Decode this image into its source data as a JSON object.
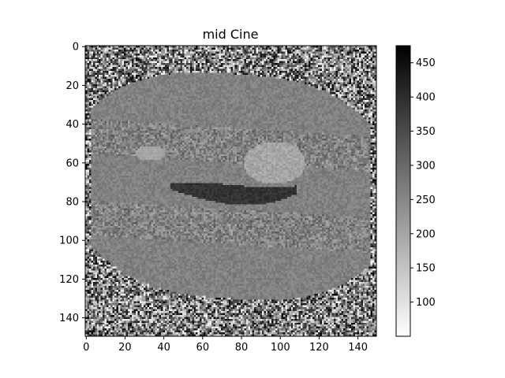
{
  "chart_data": {
    "type": "heatmap",
    "title": "mid Cine",
    "xlabel": "",
    "ylabel": "",
    "image_size": [
      150,
      150
    ],
    "xlim": [
      0,
      150
    ],
    "ylim": [
      150,
      0
    ],
    "x_ticks": [
      0,
      20,
      40,
      60,
      80,
      100,
      120,
      140
    ],
    "y_ticks": [
      0,
      20,
      40,
      60,
      80,
      100,
      120,
      140
    ],
    "colormap": "gray_r",
    "colorbar": {
      "range": [
        50,
        475
      ],
      "ticks": [
        100,
        150,
        200,
        250,
        300,
        350,
        400,
        450
      ]
    },
    "regions": [
      {
        "name": "noisy background",
        "value_range": [
          60,
          470
        ]
      },
      {
        "name": "tissue slab",
        "value_mean": 260,
        "rows": [
          10,
          132
        ]
      },
      {
        "name": "dark elongated structure",
        "value_mean": 390,
        "x_range": [
          44,
          108
        ],
        "y_range": [
          70,
          88
        ]
      },
      {
        "name": "light patches",
        "value_mean": 200,
        "x_range": [
          80,
          115
        ],
        "y_range": [
          48,
          72
        ]
      }
    ],
    "grid": false,
    "legend": "none"
  }
}
